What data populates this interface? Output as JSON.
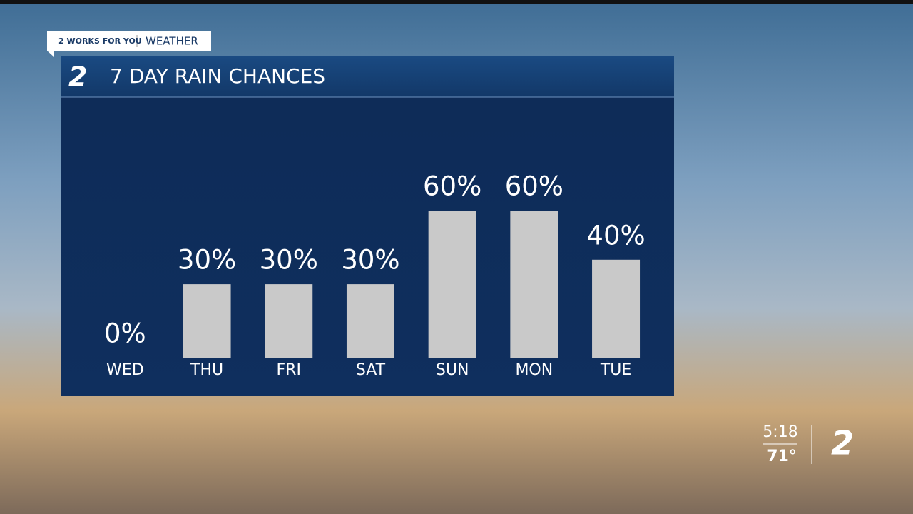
{
  "header": {
    "tag": "2 WORKS FOR YOU",
    "section": "WEATHER"
  },
  "chart_data": {
    "type": "bar",
    "title": "7 DAY RAIN CHANCES",
    "categories": [
      "WED",
      "THU",
      "FRI",
      "SAT",
      "SUN",
      "MON",
      "TUE"
    ],
    "values": [
      0,
      30,
      30,
      30,
      60,
      60,
      40
    ],
    "value_labels": [
      "0%",
      "30%",
      "30%",
      "30%",
      "60%",
      "60%",
      "40%"
    ],
    "color": "#c9c9c9"
  },
  "bug": {
    "time": "5:18",
    "temp": "71°"
  }
}
